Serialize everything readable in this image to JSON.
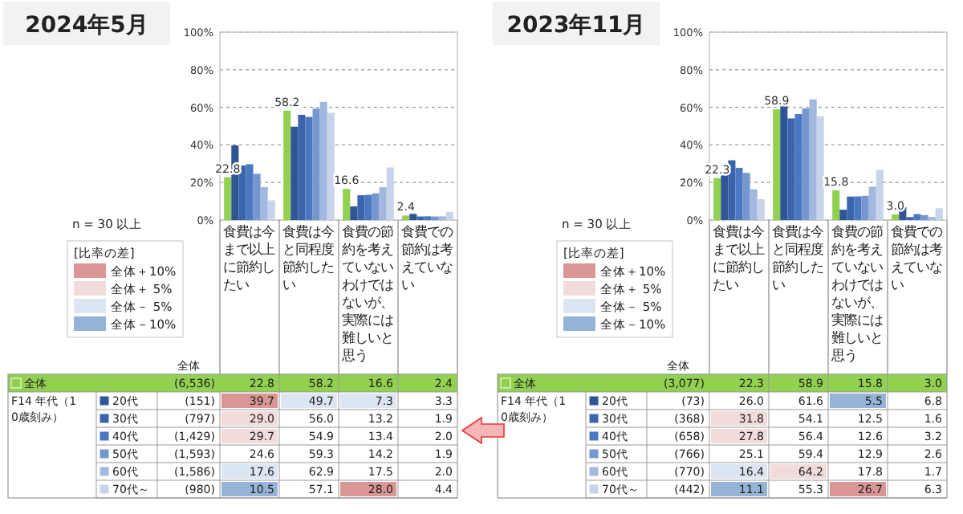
{
  "chart_data": [
    {
      "type": "bar",
      "title": "2024年5月",
      "categories": [
        "食費は今まで以上に節約したい",
        "食費は今と同程度節約したい",
        "食費の節約を考えていないわけではないが、実際には難しいと思う",
        "食費での節約は考えていない"
      ],
      "series": [
        {
          "name": "全体",
          "color": "#92d050",
          "values": [
            22.8,
            58.2,
            16.6,
            2.4
          ],
          "value_labels": [
            "22.8",
            "58.2",
            "16.6",
            "2.4"
          ]
        },
        {
          "name": "20代",
          "color": "#2f5597",
          "values": [
            39.7,
            49.7,
            7.3,
            3.3
          ],
          "value_labels": [
            "39.7",
            "49.7",
            "7.3",
            "3.3"
          ]
        },
        {
          "name": "30代",
          "color": "#3b64ad",
          "values": [
            29.0,
            56.0,
            13.2,
            1.9
          ],
          "value_labels": [
            "29.0",
            "56.0",
            "13.2",
            "1.9"
          ]
        },
        {
          "name": "40代",
          "color": "#4a78c2",
          "values": [
            29.7,
            54.9,
            13.4,
            2.0
          ],
          "value_labels": [
            "29.7",
            "54.9",
            "13.4",
            "2.0"
          ]
        },
        {
          "name": "50代",
          "color": "#7596cf",
          "values": [
            24.6,
            59.3,
            14.2,
            1.9
          ],
          "value_labels": [
            "24.6",
            "59.3",
            "14.2",
            "1.9"
          ]
        },
        {
          "name": "60代",
          "color": "#a3b8de",
          "values": [
            17.6,
            62.9,
            17.5,
            2.0
          ],
          "value_labels": [
            "17.6",
            "62.9",
            "17.5",
            "2.0"
          ]
        },
        {
          "name": "70代～",
          "color": "#c8d4ea",
          "values": [
            10.5,
            57.1,
            28.0,
            4.4
          ],
          "value_labels": [
            "10.5",
            "57.1",
            "28.0",
            "4.4"
          ]
        }
      ],
      "ylim": [
        0,
        100
      ],
      "yticks": [
        {
          "value": 0,
          "label": "0%"
        },
        {
          "value": 20,
          "label": "20%"
        },
        {
          "value": 40,
          "label": "40%"
        },
        {
          "value": 60,
          "label": "60%"
        },
        {
          "value": 80,
          "label": "80%"
        },
        {
          "value": 100,
          "label": "100%"
        }
      ],
      "grid": "y",
      "legend": "bottom left",
      "annotations": [
        "n = 30 以上",
        "[比率の差]",
        "全体＋10%",
        "全体＋ 5%",
        "全体－ 5%",
        "全体－10%",
        "F14 年代（10歳刻み）",
        "全体",
        "(6,536)",
        "(151)",
        "(797)",
        "(1,429)",
        "(1,593)",
        "(1,586)",
        "(980)"
      ]
    },
    {
      "type": "bar",
      "title": "2023年11月",
      "categories": [
        "食費は今まで以上に節約したい",
        "食費は今と同程度節約したい",
        "食費の節約を考えていないわけではないが、実際には難しいと思う",
        "食費での節約は考えていない"
      ],
      "series": [
        {
          "name": "全体",
          "color": "#92d050",
          "values": [
            22.3,
            58.9,
            15.8,
            3.0
          ],
          "value_labels": [
            "22.3",
            "58.9",
            "15.8",
            "3.0"
          ]
        },
        {
          "name": "20代",
          "color": "#2f5597",
          "values": [
            26.0,
            61.6,
            5.5,
            6.8
          ],
          "value_labels": [
            "26.0",
            "61.6",
            "5.5",
            "6.8"
          ]
        },
        {
          "name": "30代",
          "color": "#3b64ad",
          "values": [
            31.8,
            54.1,
            12.5,
            1.6
          ],
          "value_labels": [
            "31.8",
            "54.1",
            "12.5",
            "1.6"
          ]
        },
        {
          "name": "40代",
          "color": "#4a78c2",
          "values": [
            27.8,
            56.4,
            12.6,
            3.2
          ],
          "value_labels": [
            "27.8",
            "56.4",
            "12.6",
            "3.2"
          ]
        },
        {
          "name": "50代",
          "color": "#7596cf",
          "values": [
            25.1,
            59.4,
            12.9,
            2.6
          ],
          "value_labels": [
            "25.1",
            "59.4",
            "12.9",
            "2.6"
          ]
        },
        {
          "name": "60代",
          "color": "#a3b8de",
          "values": [
            16.4,
            64.2,
            17.8,
            1.7
          ],
          "value_labels": [
            "16.4",
            "64.2",
            "17.8",
            "1.7"
          ]
        },
        {
          "name": "70代～",
          "color": "#c8d4ea",
          "values": [
            11.1,
            55.3,
            26.7,
            6.3
          ],
          "value_labels": [
            "11.1",
            "55.3",
            "26.7",
            "6.3"
          ]
        }
      ],
      "ylim": [
        0,
        100
      ],
      "yticks": [
        {
          "value": 0,
          "label": "0%"
        },
        {
          "value": 20,
          "label": "20%"
        },
        {
          "value": 40,
          "label": "40%"
        },
        {
          "value": 60,
          "label": "60%"
        },
        {
          "value": 80,
          "label": "80%"
        },
        {
          "value": 100,
          "label": "100%"
        }
      ],
      "grid": "y",
      "legend": "bottom left",
      "annotations": [
        "n = 30 以上",
        "[比率の差]",
        "全体＋10%",
        "全体＋ 5%",
        "全体－ 5%",
        "全体－10%",
        "F14 年代（10歳刻み）",
        "全体",
        "(3,077)",
        "(73)",
        "(368)",
        "(658)",
        "(766)",
        "(770)",
        "(442)"
      ]
    }
  ]
}
